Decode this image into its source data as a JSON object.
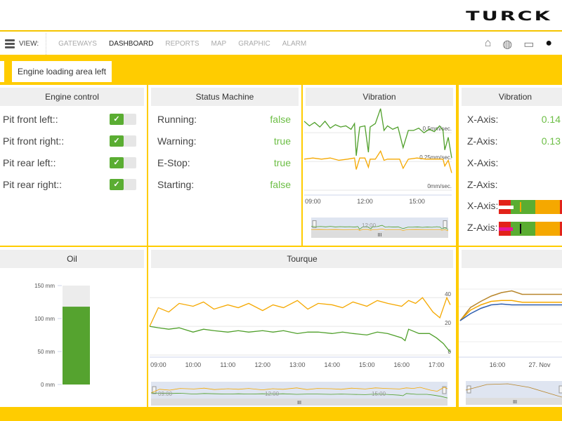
{
  "brand": "TURCK",
  "nav": {
    "view_label": "VIEW:",
    "items": [
      "GATEWAYS",
      "DASHBOARD",
      "REPORTS",
      "MAP",
      "GRAPHIC",
      "ALARM"
    ],
    "active": "DASHBOARD",
    "icons": [
      "home-icon",
      "globe-icon",
      "monitor-icon",
      "user-icon"
    ]
  },
  "tab": "Engine loading area left",
  "engine": {
    "title": "Engine control",
    "items": [
      {
        "label": "Pit front left::",
        "on": true
      },
      {
        "label": "Pit front right::",
        "on": true
      },
      {
        "label": "Pit rear left::",
        "on": true
      },
      {
        "label": "Pit rear right::",
        "on": true
      }
    ]
  },
  "status": {
    "title": "Status Machine",
    "items": [
      {
        "label": "Running:",
        "value": "false"
      },
      {
        "label": "Warning:",
        "value": "true"
      },
      {
        "label": "E-Stop:",
        "value": "true"
      },
      {
        "label": "Starting:",
        "value": "false"
      }
    ]
  },
  "vibration_values": {
    "title": "Vibration",
    "items": [
      {
        "label": "X-Axis:",
        "value": "0.14"
      },
      {
        "label": "Z-Axis:",
        "value": "0.13"
      },
      {
        "label": "X-Axis:",
        "value": ""
      },
      {
        "label": "Z-Axis:",
        "value": ""
      }
    ],
    "gauges": [
      {
        "label": "X-Axis:",
        "value": 0.14,
        "color": "#ffffff",
        "marker": "#f5a800"
      },
      {
        "label": "Z-Axis:",
        "value": 0.13,
        "color": "#e6189a",
        "marker": "#111111"
      }
    ]
  },
  "colors": {
    "accent": "#ffcc00",
    "green": "#5aad32",
    "orange": "#f5a800",
    "red": "#e2231a"
  },
  "chart_data": [
    {
      "title": "Vibration",
      "type": "line",
      "xlabels": [
        "09:00",
        "12:00",
        "15:00"
      ],
      "ylabels": [
        "0.5mm/sec.",
        "0.25mm/sec.",
        "0mm/sec."
      ],
      "yticks": [
        0.5,
        0.25,
        0
      ],
      "ylim": [
        0,
        0.55
      ],
      "xlim": [
        8.5,
        17
      ],
      "navigator_label": "12:00",
      "series": [
        {
          "color": "#4f9f2a",
          "x": [
            8.5,
            8.8,
            9.1,
            9.4,
            9.7,
            10,
            10.3,
            10.6,
            10.9,
            11.2,
            11.4,
            11.5,
            11.7,
            12,
            12.2,
            12.3,
            12.6,
            12.9,
            13.1,
            13.3,
            13.6,
            13.9,
            14.2,
            14.5,
            14.8,
            15.1,
            15.4,
            15.7,
            16,
            16.3,
            16.5,
            16.6,
            16.8,
            17
          ],
          "y": [
            0.6,
            0.56,
            0.59,
            0.55,
            0.6,
            0.54,
            0.57,
            0.55,
            0.56,
            0.53,
            0.58,
            0.3,
            0.55,
            0.56,
            0.33,
            0.55,
            0.58,
            0.71,
            0.52,
            0.56,
            0.53,
            0.55,
            0.37,
            0.52,
            0.52,
            0.54,
            0.5,
            0.53,
            0.51,
            0.56,
            0.52,
            0.35,
            0.46,
            0.28
          ]
        },
        {
          "color": "#f5a800",
          "x": [
            8.5,
            9,
            9.5,
            10,
            10.5,
            11,
            11.4,
            11.5,
            11.7,
            12,
            12.2,
            12.3,
            12.6,
            12.9,
            13.1,
            13.3,
            13.6,
            14,
            14.2,
            14.5,
            15,
            15.5,
            16,
            16.5,
            16.6,
            16.8,
            17
          ],
          "y": [
            0.27,
            0.28,
            0.27,
            0.28,
            0.26,
            0.27,
            0.28,
            0.18,
            0.28,
            0.28,
            0.2,
            0.27,
            0.27,
            0.34,
            0.26,
            0.27,
            0.27,
            0.27,
            0.19,
            0.27,
            0.28,
            0.27,
            0.27,
            0.27,
            0.21,
            0.26,
            0.15
          ]
        }
      ]
    },
    {
      "title": "Tourque",
      "type": "line",
      "xlabels": [
        "09:00",
        "10:00",
        "11:00",
        "12:00",
        "13:00",
        "14:00",
        "15:00",
        "16:00",
        "17:00"
      ],
      "yticks": [
        40,
        20,
        0
      ],
      "ylim": [
        0,
        45
      ],
      "xlim": [
        8.75,
        17.4
      ],
      "navigator_labels": [
        "09:00",
        "12:00",
        "15:00"
      ],
      "series": [
        {
          "color": "#f5a800",
          "x": [
            8.75,
            9,
            9.3,
            9.6,
            10,
            10.3,
            10.6,
            11,
            11.3,
            11.6,
            12,
            12.3,
            12.6,
            13,
            13.3,
            13.6,
            14,
            14.3,
            14.6,
            15,
            15.3,
            15.6,
            16,
            16.2,
            16.4,
            16.6,
            16.9,
            17.1,
            17.3,
            17.4
          ],
          "y": [
            20,
            33,
            30,
            36,
            34,
            37,
            32,
            35,
            33,
            36,
            31,
            35,
            33,
            38,
            32,
            36,
            35,
            33,
            37,
            34,
            38,
            36,
            34,
            38,
            36,
            40,
            30,
            26,
            40,
            35
          ]
        },
        {
          "color": "#4f9f2a",
          "x": [
            8.75,
            9,
            9.3,
            9.6,
            10,
            10.3,
            10.6,
            11,
            11.3,
            11.6,
            12,
            12.3,
            12.6,
            13,
            13.3,
            13.6,
            14,
            14.3,
            14.6,
            15,
            15.3,
            15.6,
            16,
            16.1,
            16.2,
            16.5,
            16.8,
            17,
            17.2,
            17.4
          ],
          "y": [
            20,
            19,
            18,
            19,
            16,
            18,
            17,
            16,
            17,
            16,
            17,
            16,
            17,
            15,
            16,
            16,
            15,
            16,
            15,
            14,
            16,
            15,
            12,
            10,
            18,
            15,
            15,
            12,
            8,
            2
          ]
        }
      ]
    },
    {
      "title": "",
      "type": "line",
      "xlabels": [
        "16:00",
        "27. Nov"
      ],
      "series": [
        {
          "color": "#b8862b",
          "x": [
            0,
            1,
            2,
            3,
            4,
            5,
            6,
            7,
            8,
            9,
            10
          ],
          "y": [
            40,
            55,
            62,
            68,
            72,
            74,
            70,
            70,
            70,
            70,
            70
          ]
        },
        {
          "color": "#f5a800",
          "x": [
            0,
            1,
            2,
            3,
            4,
            5,
            6,
            7,
            8,
            9,
            10
          ],
          "y": [
            40,
            52,
            58,
            62,
            63,
            63,
            61,
            61,
            61,
            61,
            61
          ]
        },
        {
          "color": "#2f5fb0",
          "x": [
            0,
            1,
            2,
            3,
            4,
            5,
            6,
            7,
            8,
            9,
            10
          ],
          "y": [
            40,
            48,
            54,
            58,
            59,
            58,
            58,
            58,
            58,
            58,
            58
          ]
        }
      ]
    }
  ],
  "oil": {
    "title": "Oil",
    "value": 118,
    "max": 150,
    "unit": "mm",
    "ticks": [
      "150 mm",
      "100 mm",
      "50 mm",
      "0 mm"
    ]
  }
}
